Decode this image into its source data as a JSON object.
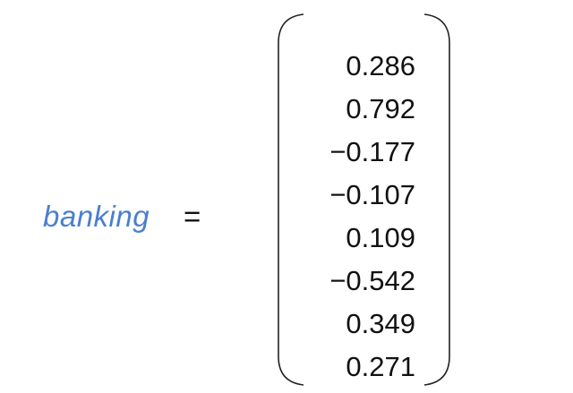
{
  "equation": {
    "variable": "banking",
    "operator": "=",
    "vector": [
      "0.286",
      "0.792",
      "−0.177",
      "−0.107",
      "0.109",
      "−0.542",
      "0.349",
      "0.271"
    ]
  },
  "colors": {
    "variable": "#4a7fcf",
    "text": "#111111",
    "bracket": "#222222"
  }
}
